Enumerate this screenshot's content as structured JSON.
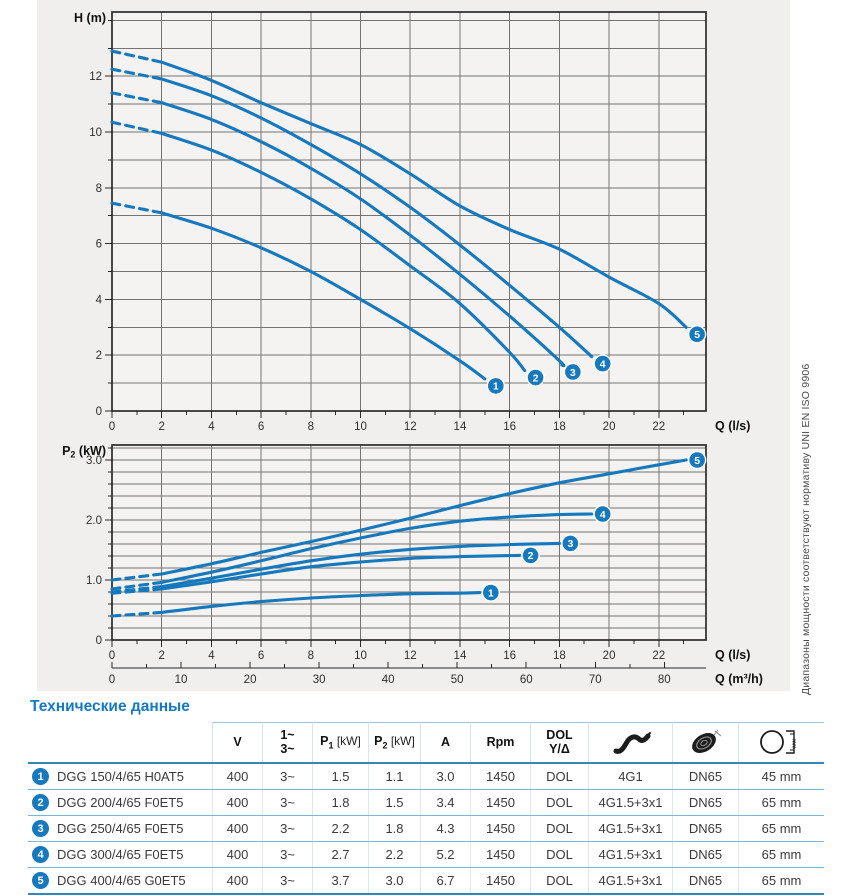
{
  "side_note": "Диапазоны мощности соответствуют нормативу UNI EN ISO 9906",
  "colors": {
    "curve_blue": "#1679bd",
    "badge_blue": "#1679bd",
    "title_blue": "#157ac1",
    "grid_gray": "#747474",
    "plot_border": "#1f1f1f",
    "panel_bg": "#f0efee",
    "plot_bg": "#f4f3f2",
    "table_line_blue": "#3487b8",
    "row_line_blue": "#79b7dc"
  },
  "chart_data": [
    {
      "type": "line",
      "title": "Head curves",
      "ylabel_main": "H",
      "ylabel_sub": "",
      "ylabel_rest": " (m)",
      "xlabel": "Q (l/s)",
      "xlim": [
        0,
        23.9
      ],
      "ylim": [
        0,
        14.3
      ],
      "x_ticks": [
        0,
        2,
        4,
        6,
        8,
        10,
        12,
        14,
        16,
        18,
        20,
        22
      ],
      "x_minor_step": 1,
      "y_ticks": [
        0,
        2,
        4,
        6,
        8,
        10,
        12
      ],
      "y_grid_step": 1,
      "grid": true,
      "legend_position": "endpoint-badges",
      "series": [
        {
          "name": "1",
          "dash_until": 2.0,
          "points": [
            [
              0,
              7.45
            ],
            [
              2,
              7.1
            ],
            [
              4,
              6.55
            ],
            [
              6,
              5.85
            ],
            [
              8,
              5.0
            ],
            [
              10,
              4.0
            ],
            [
              12,
              2.95
            ],
            [
              14,
              1.8
            ],
            [
              15,
              1.15
            ]
          ]
        },
        {
          "name": "2",
          "dash_until": 2.8,
          "points": [
            [
              0,
              10.35
            ],
            [
              2,
              9.95
            ],
            [
              4,
              9.35
            ],
            [
              6,
              8.55
            ],
            [
              8,
              7.6
            ],
            [
              10,
              6.5
            ],
            [
              12,
              5.2
            ],
            [
              14,
              3.85
            ],
            [
              16,
              2.1
            ],
            [
              16.6,
              1.45
            ]
          ]
        },
        {
          "name": "3",
          "dash_until": 2.8,
          "points": [
            [
              0,
              11.4
            ],
            [
              2,
              11.05
            ],
            [
              4,
              10.45
            ],
            [
              6,
              9.65
            ],
            [
              8,
              8.7
            ],
            [
              10,
              7.6
            ],
            [
              12,
              6.3
            ],
            [
              14,
              4.9
            ],
            [
              16,
              3.4
            ],
            [
              18,
              1.8
            ],
            [
              18.1,
              1.65
            ]
          ]
        },
        {
          "name": "4",
          "dash_until": 2.4,
          "points": [
            [
              0,
              12.25
            ],
            [
              2,
              11.9
            ],
            [
              4,
              11.3
            ],
            [
              6,
              10.5
            ],
            [
              8,
              9.55
            ],
            [
              10,
              8.5
            ],
            [
              12,
              7.3
            ],
            [
              14,
              5.95
            ],
            [
              16,
              4.5
            ],
            [
              18,
              3.0
            ],
            [
              19.3,
              1.95
            ]
          ]
        },
        {
          "name": "5",
          "dash_until": 2.2,
          "points": [
            [
              0,
              12.9
            ],
            [
              2,
              12.5
            ],
            [
              4,
              11.85
            ],
            [
              6,
              11.05
            ],
            [
              8,
              10.3
            ],
            [
              10,
              9.55
            ],
            [
              12,
              8.5
            ],
            [
              14,
              7.35
            ],
            [
              16,
              6.5
            ],
            [
              18,
              5.8
            ],
            [
              20,
              4.8
            ],
            [
              22,
              3.85
            ],
            [
              23.1,
              3.0
            ]
          ]
        }
      ]
    },
    {
      "type": "line",
      "title": "Power curves",
      "ylabel_main": "P",
      "ylabel_sub": "2",
      "ylabel_rest": " (kW)",
      "xlabel": "Q (l/s)",
      "x2label": "Q (m³/h)",
      "xlim": [
        0,
        23.9
      ],
      "ylim": [
        0,
        3.25
      ],
      "x_ticks": [
        0,
        2,
        4,
        6,
        8,
        10,
        12,
        14,
        16,
        18,
        20,
        22
      ],
      "x_minor_step": 1,
      "y_ticks_labels": [
        "0",
        "1.0",
        "2.0",
        "3.0"
      ],
      "y_ticks": [
        0,
        1,
        2,
        3
      ],
      "y_grid_step": 0.2,
      "x2_ticks": [
        0,
        10,
        20,
        30,
        40,
        50,
        60,
        70,
        80
      ],
      "x2_minor_step": 5,
      "x2_per_x": 3.6,
      "grid": true,
      "legend_position": "endpoint-badges",
      "series": [
        {
          "name": "1",
          "dash_until": 2.0,
          "points": [
            [
              0,
              0.4
            ],
            [
              2,
              0.46
            ],
            [
              4,
              0.56
            ],
            [
              6,
              0.64
            ],
            [
              8,
              0.7
            ],
            [
              10,
              0.74
            ],
            [
              12,
              0.77
            ],
            [
              14,
              0.78
            ],
            [
              14.8,
              0.79
            ]
          ]
        },
        {
          "name": "2",
          "dash_until": 2.2,
          "points": [
            [
              0,
              0.78
            ],
            [
              2,
              0.85
            ],
            [
              4,
              0.97
            ],
            [
              6,
              1.1
            ],
            [
              8,
              1.22
            ],
            [
              10,
              1.3
            ],
            [
              12,
              1.36
            ],
            [
              14,
              1.39
            ],
            [
              16.4,
              1.41
            ]
          ]
        },
        {
          "name": "3",
          "dash_until": 2.4,
          "points": [
            [
              0,
              0.8
            ],
            [
              2,
              0.89
            ],
            [
              4,
              1.03
            ],
            [
              6,
              1.18
            ],
            [
              8,
              1.32
            ],
            [
              10,
              1.43
            ],
            [
              12,
              1.51
            ],
            [
              14,
              1.56
            ],
            [
              16,
              1.59
            ],
            [
              18,
              1.61
            ]
          ]
        },
        {
          "name": "4",
          "dash_until": 2.6,
          "points": [
            [
              0,
              0.85
            ],
            [
              2,
              0.96
            ],
            [
              4,
              1.13
            ],
            [
              6,
              1.32
            ],
            [
              8,
              1.52
            ],
            [
              10,
              1.7
            ],
            [
              12,
              1.86
            ],
            [
              14,
              1.98
            ],
            [
              16,
              2.05
            ],
            [
              18,
              2.09
            ],
            [
              19.3,
              2.1
            ]
          ]
        },
        {
          "name": "5",
          "dash_until": 2.8,
          "points": [
            [
              0,
              1.0
            ],
            [
              2,
              1.1
            ],
            [
              4,
              1.27
            ],
            [
              6,
              1.46
            ],
            [
              8,
              1.64
            ],
            [
              10,
              1.83
            ],
            [
              12,
              2.03
            ],
            [
              14,
              2.24
            ],
            [
              16,
              2.44
            ],
            [
              18,
              2.62
            ],
            [
              20,
              2.77
            ],
            [
              22,
              2.92
            ],
            [
              23.1,
              3.0
            ]
          ]
        }
      ]
    }
  ],
  "table": {
    "title": "Технические данные",
    "headers": [
      {
        "type": "text",
        "lines": [
          "V"
        ]
      },
      {
        "type": "text",
        "lines": [
          "1~",
          "3~"
        ]
      },
      {
        "type": "psub",
        "main": "P",
        "sub": "1",
        "rest": " [kW]"
      },
      {
        "type": "psub",
        "main": "P",
        "sub": "2",
        "rest": " [kW]"
      },
      {
        "type": "text",
        "lines": [
          "A"
        ]
      },
      {
        "type": "text",
        "lines": [
          "Rpm"
        ]
      },
      {
        "type": "text",
        "lines": [
          "DOL",
          "Y/Δ"
        ]
      },
      {
        "type": "icon",
        "icon": "cable-icon"
      },
      {
        "type": "icon",
        "icon": "flange-icon"
      },
      {
        "type": "icon",
        "icon": "passage-icon"
      }
    ],
    "rows": [
      {
        "num": "1",
        "model": "DGG 150/4/65 H0AT5",
        "v": "400",
        "ph": "3~",
        "p1": "1.5",
        "p2": "1.1",
        "a": "3.0",
        "rpm": "1450",
        "start": "DOL",
        "cable": "4G1",
        "dn": "DN65",
        "free": "45 mm"
      },
      {
        "num": "2",
        "model": "DGG 200/4/65 F0ET5",
        "v": "400",
        "ph": "3~",
        "p1": "1.8",
        "p2": "1.5",
        "a": "3.4",
        "rpm": "1450",
        "start": "DOL",
        "cable": "4G1.5+3x1",
        "dn": "DN65",
        "free": "65 mm"
      },
      {
        "num": "3",
        "model": "DGG 250/4/65 F0ET5",
        "v": "400",
        "ph": "3~",
        "p1": "2.2",
        "p2": "1.8",
        "a": "4.3",
        "rpm": "1450",
        "start": "DOL",
        "cable": "4G1.5+3x1",
        "dn": "DN65",
        "free": "65 mm"
      },
      {
        "num": "4",
        "model": "DGG 300/4/65 F0ET5",
        "v": "400",
        "ph": "3~",
        "p1": "2.7",
        "p2": "2.2",
        "a": "5.2",
        "rpm": "1450",
        "start": "DOL",
        "cable": "4G1.5+3x1",
        "dn": "DN65",
        "free": "65 mm"
      },
      {
        "num": "5",
        "model": "DGG 400/4/65 G0ET5",
        "v": "400",
        "ph": "3~",
        "p1": "3.7",
        "p2": "3.0",
        "a": "6.7",
        "rpm": "1450",
        "start": "DOL",
        "cable": "4G1.5+3x1",
        "dn": "DN65",
        "free": "65 mm"
      }
    ]
  }
}
